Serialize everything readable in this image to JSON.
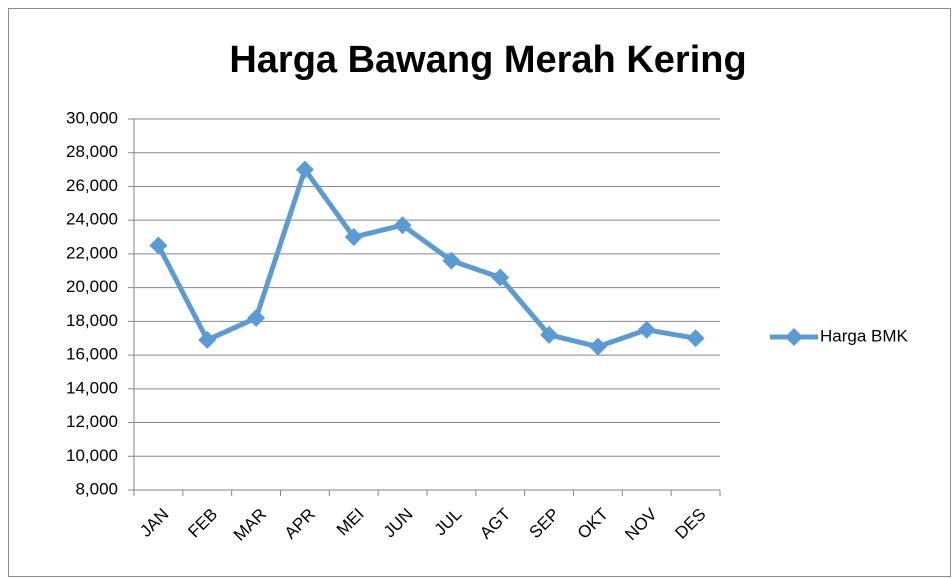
{
  "chart_data": {
    "type": "line",
    "title": "Harga Bawang Merah Kering",
    "categories": [
      "JAN",
      "FEB",
      "MAR",
      "APR",
      "MEI",
      "JUN",
      "JUL",
      "AGT",
      "SEP",
      "OKT",
      "NOV",
      "DES"
    ],
    "series": [
      {
        "name": "Harga BMK",
        "color": "#5b9bd5",
        "values": [
          22500,
          16900,
          18200,
          27000,
          23000,
          23700,
          21600,
          20600,
          17200,
          16500,
          17500,
          17000
        ]
      }
    ],
    "ylim": [
      8000,
      30000
    ],
    "yticks": [
      {
        "value": 8000,
        "label": "8,000"
      },
      {
        "value": 10000,
        "label": "10,000"
      },
      {
        "value": 12000,
        "label": "12,000"
      },
      {
        "value": 14000,
        "label": "14,000"
      },
      {
        "value": 16000,
        "label": "16,000"
      },
      {
        "value": 18000,
        "label": "18,000"
      },
      {
        "value": 20000,
        "label": "20,000"
      },
      {
        "value": 22000,
        "label": "22,000"
      },
      {
        "value": 24000,
        "label": "24,000"
      },
      {
        "value": 26000,
        "label": "26,000"
      },
      {
        "value": 28000,
        "label": "28,000"
      },
      {
        "value": 30000,
        "label": "30,000"
      }
    ],
    "grid": true,
    "legend": "right"
  }
}
